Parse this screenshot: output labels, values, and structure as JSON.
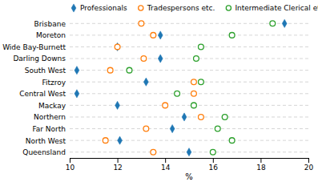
{
  "chart_data": {
    "type": "dot",
    "x_label": "%",
    "categories": [
      "Brisbane",
      "Moreton",
      "Wide Bay-Burnett",
      "Darling Downs",
      "South West",
      "Fitzroy",
      "Central West",
      "Mackay",
      "Northern",
      "Far North",
      "North West",
      "Queensland"
    ],
    "series": [
      {
        "name": "Professionals",
        "marker": "diamond",
        "values": [
          19.0,
          13.8,
          12.0,
          13.8,
          10.3,
          13.2,
          10.3,
          12.0,
          14.8,
          14.3,
          12.1,
          15.0
        ]
      },
      {
        "name": "Tradespersons etc.",
        "marker": "open-circle",
        "values": [
          13.0,
          13.5,
          12.0,
          13.1,
          11.7,
          15.2,
          15.2,
          14.0,
          15.5,
          13.2,
          11.5,
          13.5
        ]
      },
      {
        "name": "Intermediate Clerical etc.",
        "marker": "open-circle",
        "values": [
          18.5,
          16.8,
          15.5,
          15.3,
          12.5,
          15.5,
          14.5,
          15.2,
          16.5,
          16.2,
          16.8,
          16.0
        ]
      }
    ],
    "xlim": [
      10,
      20
    ],
    "xticks": [
      10,
      12,
      14,
      16,
      18,
      20
    ],
    "legend": "top"
  }
}
